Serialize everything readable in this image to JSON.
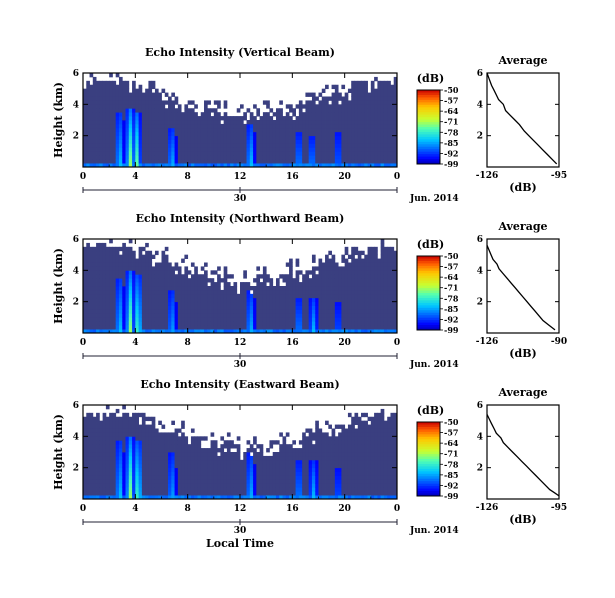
{
  "chart_data": [
    {
      "type": "heatmap",
      "title": "Echo Intensity (Vertical Beam)",
      "ylabel": "Height (km)",
      "xlabel": "",
      "xticks": [
        "0",
        "4",
        "8",
        "12",
        "16",
        "20",
        "0"
      ],
      "yticks": [
        "6",
        "4",
        "2"
      ],
      "date_ticks": [
        "30"
      ],
      "date_label": "Jun. 2014",
      "xlim": [
        0,
        24
      ],
      "ylim": [
        0,
        6
      ],
      "colorbar": {
        "label": "(dB)",
        "ticks": [
          "-50",
          "-57",
          "-64",
          "-71",
          "-78",
          "-85",
          "-92",
          "-99"
        ],
        "range": [
          -99,
          -50
        ]
      },
      "profile": {
        "title": "Average",
        "xlabel": "(dB)",
        "xticks": [
          "-126",
          "-95"
        ],
        "yticks": [
          "6",
          "4",
          "2"
        ],
        "xlim": [
          -126,
          -95
        ],
        "ylim": [
          0,
          6
        ],
        "x": [
          -126,
          -125,
          -124,
          -123,
          -122,
          -121,
          -119,
          -118,
          -116,
          -114,
          -112,
          -110,
          -108,
          -106,
          -104,
          -102,
          -100,
          -98,
          -96
        ],
        "y": [
          6.0,
          5.6,
          5.2,
          4.9,
          4.6,
          4.3,
          4.0,
          3.6,
          3.3,
          3.0,
          2.7,
          2.3,
          2.0,
          1.7,
          1.4,
          1.1,
          0.8,
          0.5,
          0.2
        ]
      },
      "convective_events": [
        {
          "time": 2.8,
          "top": 3.5,
          "strength": 0.6
        },
        {
          "time": 3.6,
          "top": 3.8,
          "strength": 0.95
        },
        {
          "time": 4.1,
          "top": 3.6,
          "strength": 0.85
        },
        {
          "time": 6.8,
          "top": 2.5,
          "strength": 0.55
        },
        {
          "time": 12.8,
          "top": 2.8,
          "strength": 0.6
        },
        {
          "time": 16.5,
          "top": 2.3,
          "strength": 0.45
        },
        {
          "time": 17.5,
          "top": 2.0,
          "strength": 0.45
        },
        {
          "time": 19.5,
          "top": 2.3,
          "strength": 0.35
        }
      ]
    },
    {
      "type": "heatmap",
      "title": "Echo Intensity (Northward Beam)",
      "ylabel": "Height (km)",
      "xlabel": "",
      "xticks": [
        "0",
        "4",
        "8",
        "12",
        "16",
        "20",
        "0"
      ],
      "yticks": [
        "6",
        "4",
        "2"
      ],
      "date_ticks": [
        "30"
      ],
      "date_label": "Jun. 2014",
      "xlim": [
        0,
        24
      ],
      "ylim": [
        0,
        6
      ],
      "colorbar": {
        "label": "(dB)",
        "ticks": [
          "-50",
          "-57",
          "-64",
          "-71",
          "-78",
          "-85",
          "-92",
          "-99"
        ],
        "range": [
          -99,
          -50
        ]
      },
      "profile": {
        "title": "Average",
        "xlabel": "(dB)",
        "xticks": [
          "-126",
          "-90"
        ],
        "yticks": [
          "6",
          "4",
          "2"
        ],
        "xlim": [
          -126,
          -90
        ],
        "ylim": [
          0,
          6
        ],
        "x": [
          -126,
          -125,
          -124,
          -123,
          -121,
          -120,
          -118,
          -116,
          -114,
          -112,
          -110,
          -108,
          -106,
          -104,
          -102,
          -100,
          -98,
          -95,
          -92
        ],
        "y": [
          5.6,
          5.3,
          5.0,
          4.7,
          4.4,
          4.1,
          3.8,
          3.5,
          3.2,
          2.9,
          2.6,
          2.3,
          2.0,
          1.7,
          1.4,
          1.1,
          0.8,
          0.5,
          0.2
        ]
      },
      "convective_events": [
        {
          "time": 2.8,
          "top": 3.6,
          "strength": 0.6
        },
        {
          "time": 3.6,
          "top": 3.9,
          "strength": 0.95
        },
        {
          "time": 4.2,
          "top": 3.7,
          "strength": 0.85
        },
        {
          "time": 6.8,
          "top": 2.8,
          "strength": 0.5
        },
        {
          "time": 12.8,
          "top": 2.8,
          "strength": 0.55
        },
        {
          "time": 16.5,
          "top": 2.3,
          "strength": 0.45
        },
        {
          "time": 17.6,
          "top": 2.3,
          "strength": 0.5
        },
        {
          "time": 19.5,
          "top": 2.0,
          "strength": 0.3
        }
      ]
    },
    {
      "type": "heatmap",
      "title": "Echo Intensity (Eastward Beam)",
      "ylabel": "Height (km)",
      "xlabel": "Local Time",
      "xticks": [
        "0",
        "4",
        "8",
        "12",
        "16",
        "20",
        "0"
      ],
      "yticks": [
        "6",
        "4",
        "2"
      ],
      "date_ticks": [
        "30"
      ],
      "date_label": "Jun. 2014",
      "xlim": [
        0,
        24
      ],
      "ylim": [
        0,
        6
      ],
      "colorbar": {
        "label": "(dB)",
        "ticks": [
          "-50",
          "-57",
          "-64",
          "-71",
          "-78",
          "-85",
          "-92",
          "-99"
        ],
        "range": [
          -99,
          -50
        ]
      },
      "profile": {
        "title": "Average",
        "xlabel": "(dB)",
        "xticks": [
          "-126",
          "-95"
        ],
        "yticks": [
          "6",
          "4",
          "2"
        ],
        "xlim": [
          -126,
          -95
        ],
        "ylim": [
          0,
          6
        ],
        "x": [
          -126,
          -125,
          -124,
          -123,
          -122,
          -120,
          -119,
          -117,
          -115,
          -113,
          -111,
          -109,
          -107,
          -105,
          -103,
          -101,
          -99,
          -97,
          -95
        ],
        "y": [
          5.4,
          5.1,
          4.8,
          4.5,
          4.2,
          3.9,
          3.6,
          3.3,
          3.0,
          2.7,
          2.4,
          2.1,
          1.8,
          1.5,
          1.2,
          0.9,
          0.6,
          0.4,
          0.2
        ]
      },
      "convective_events": [
        {
          "time": 2.8,
          "top": 3.7,
          "strength": 0.6
        },
        {
          "time": 3.6,
          "top": 4.0,
          "strength": 0.95
        },
        {
          "time": 4.2,
          "top": 3.8,
          "strength": 0.85
        },
        {
          "time": 6.8,
          "top": 2.9,
          "strength": 0.5
        },
        {
          "time": 12.8,
          "top": 3.0,
          "strength": 0.55
        },
        {
          "time": 16.5,
          "top": 2.5,
          "strength": 0.45
        },
        {
          "time": 17.6,
          "top": 2.4,
          "strength": 0.5
        },
        {
          "time": 19.5,
          "top": 2.0,
          "strength": 0.3
        }
      ]
    }
  ]
}
